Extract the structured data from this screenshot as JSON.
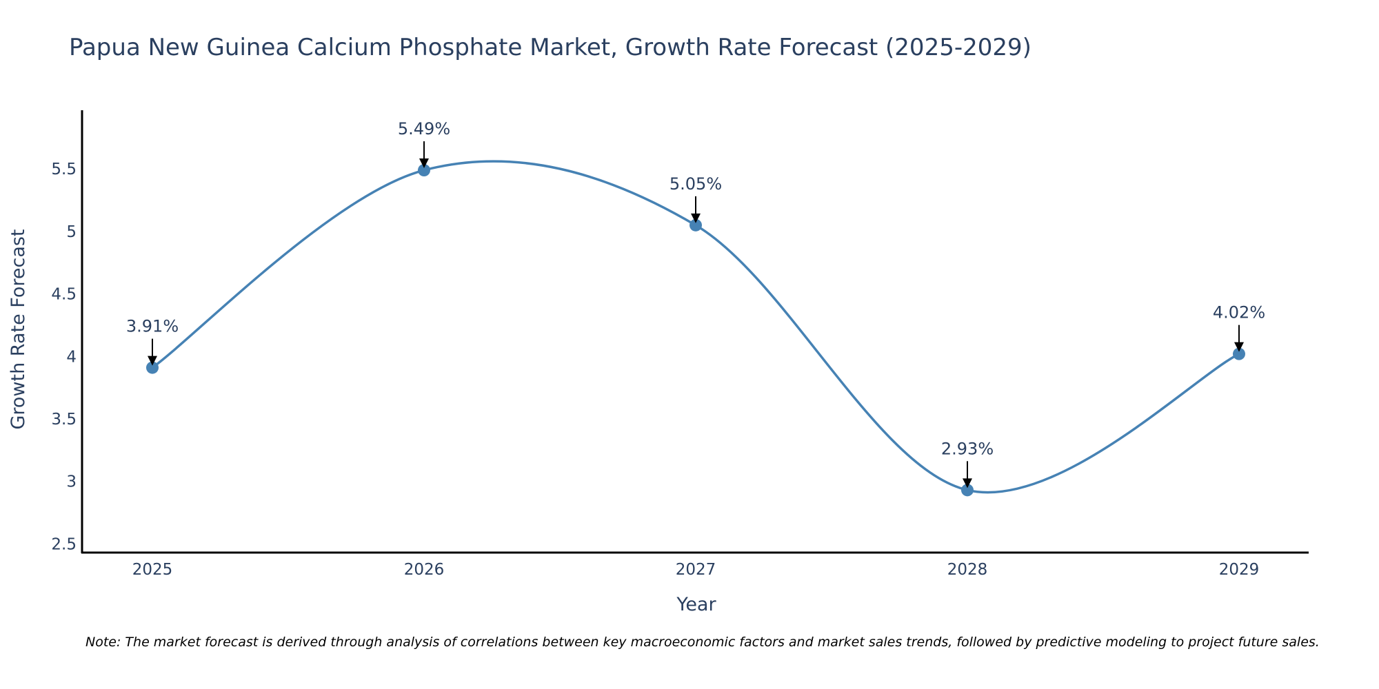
{
  "chart_data": {
    "type": "line",
    "title": "Papua New Guinea Calcium Phosphate Market, Growth Rate Forecast (2025-2029)",
    "xlabel": "Year",
    "ylabel": "Growth Rate Forecast",
    "categories": [
      "2025",
      "2026",
      "2027",
      "2028",
      "2029"
    ],
    "series": [
      {
        "name": "Growth Rate Forecast",
        "values": [
          3.91,
          5.49,
          5.05,
          2.93,
          4.02
        ],
        "line_shape": "spline",
        "markers": true
      }
    ],
    "data_labels": [
      "3.91%",
      "5.49%",
      "5.05%",
      "2.93%",
      "4.02%"
    ],
    "y_ticks": [
      2.5,
      3,
      3.5,
      4,
      4.5,
      5,
      5.5
    ],
    "y_tick_labels": [
      "2.5",
      "3",
      "3.5",
      "4",
      "4.5",
      "5",
      "5.5"
    ],
    "ylim": [
      2.43,
      5.97
    ],
    "grid": false,
    "note": "Note: The market forecast is derived through analysis of correlations between key macroeconomic factors and market sales trends, followed by predictive modeling to project future sales."
  },
  "colors": {
    "line": "#4682b4",
    "marker": "#4682b4",
    "text": "#2a3f5f",
    "axis": "#000000",
    "arrow": "#000000"
  }
}
